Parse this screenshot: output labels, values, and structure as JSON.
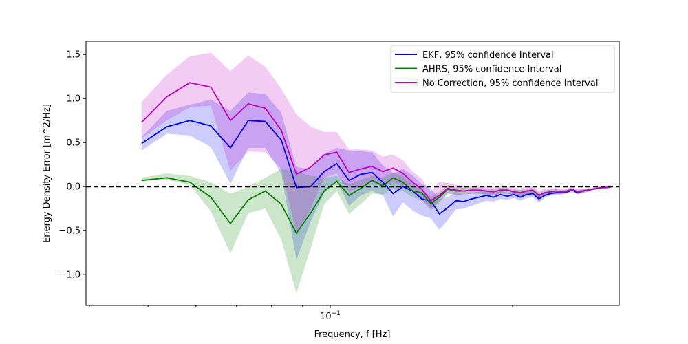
{
  "chart_data": {
    "type": "line",
    "xlabel": "Frequency, f [Hz]",
    "ylabel": "Energy Density Error [m^2/Hz]",
    "xscale": "log",
    "xlim": [
      0.0395,
      0.3
    ],
    "ylim": [
      -1.35,
      1.65
    ],
    "grid": false,
    "legend_position": "top-right",
    "x_tick_labels": [
      {
        "value": 0.1,
        "base": "10",
        "exp": "−1"
      }
    ],
    "y_ticks": [
      -1.0,
      -0.5,
      0.0,
      0.5,
      1.0,
      1.5
    ],
    "y_tick_labels": [
      "−1.0",
      "−0.5",
      "0.0",
      "0.5",
      "1.0",
      "1.5"
    ],
    "reference_line": {
      "y": 0,
      "style": "dashed",
      "color": "#000000"
    },
    "x": [
      0.0488,
      0.0537,
      0.0586,
      0.0635,
      0.0684,
      0.0732,
      0.0781,
      0.083,
      0.0879,
      0.0928,
      0.0977,
      0.1025,
      0.1074,
      0.1123,
      0.1172,
      0.1221,
      0.127,
      0.1318,
      0.1367,
      0.1416,
      0.1465,
      0.1514,
      0.1563,
      0.1611,
      0.166,
      0.171,
      0.176,
      0.181,
      0.186,
      0.191,
      0.196,
      0.201,
      0.206,
      0.211,
      0.216,
      0.221,
      0.226,
      0.231,
      0.236,
      0.241,
      0.246,
      0.251,
      0.256,
      0.261,
      0.266,
      0.271,
      0.276,
      0.281,
      0.286,
      0.291
    ],
    "series": [
      {
        "name": "EKF, 95% confidence Interval",
        "color": "#0000ff",
        "values": [
          0.49,
          0.68,
          0.75,
          0.69,
          0.44,
          0.75,
          0.74,
          0.53,
          -0.01,
          0.0,
          0.17,
          0.26,
          0.07,
          0.14,
          0.16,
          0.05,
          -0.08,
          0.0,
          -0.05,
          -0.14,
          -0.16,
          -0.31,
          -0.24,
          -0.16,
          -0.17,
          -0.14,
          -0.12,
          -0.1,
          -0.12,
          -0.09,
          -0.11,
          -0.09,
          -0.12,
          -0.09,
          -0.08,
          -0.14,
          -0.1,
          -0.08,
          -0.07,
          -0.07,
          -0.06,
          -0.04,
          -0.07,
          -0.05,
          -0.04,
          -0.03,
          -0.02,
          -0.01,
          -0.01,
          0.0
        ],
        "lower": [
          0.41,
          0.6,
          0.58,
          0.45,
          0.03,
          0.44,
          0.44,
          0.15,
          -0.83,
          -0.4,
          -0.07,
          0.07,
          -0.22,
          -0.1,
          -0.05,
          -0.1,
          -0.34,
          -0.18,
          -0.27,
          -0.33,
          -0.36,
          -0.49,
          -0.38,
          -0.26,
          -0.25,
          -0.22,
          -0.19,
          -0.16,
          -0.17,
          -0.14,
          -0.15,
          -0.13,
          -0.16,
          -0.13,
          -0.12,
          -0.18,
          -0.13,
          -0.1,
          -0.09,
          -0.09,
          -0.08,
          -0.06,
          -0.09,
          -0.07,
          -0.05,
          -0.04,
          -0.03,
          -0.02,
          -0.02,
          -0.01
        ],
        "upper": [
          0.56,
          0.86,
          0.93,
          0.99,
          0.86,
          1.07,
          1.05,
          0.84,
          0.22,
          0.2,
          0.37,
          0.44,
          0.41,
          0.4,
          0.39,
          0.24,
          0.15,
          0.2,
          0.13,
          0.03,
          -0.02,
          -0.14,
          -0.12,
          -0.06,
          -0.09,
          -0.07,
          -0.06,
          -0.05,
          -0.07,
          -0.05,
          -0.07,
          -0.06,
          -0.08,
          -0.05,
          -0.04,
          -0.09,
          -0.07,
          -0.05,
          -0.05,
          -0.05,
          -0.04,
          -0.02,
          -0.05,
          -0.03,
          -0.03,
          -0.02,
          -0.01,
          0.0,
          0.0,
          0.01
        ]
      },
      {
        "name": "AHRS, 95% confidence Interval",
        "color": "#008000",
        "values": [
          0.07,
          0.1,
          0.05,
          -0.12,
          -0.42,
          -0.15,
          -0.05,
          -0.2,
          -0.53,
          -0.3,
          -0.05,
          0.06,
          -0.1,
          -0.02,
          0.07,
          0.01,
          0.1,
          0.05,
          -0.05,
          -0.07,
          -0.19,
          -0.12,
          -0.03,
          -0.05,
          -0.05,
          -0.04,
          -0.04,
          -0.05,
          -0.06,
          -0.04,
          -0.04,
          -0.06,
          -0.07,
          -0.05,
          -0.04,
          -0.1,
          -0.07,
          -0.06,
          -0.05,
          -0.06,
          -0.05,
          -0.03,
          -0.06,
          -0.05,
          -0.04,
          -0.03,
          -0.02,
          -0.01,
          -0.01,
          0.0
        ],
        "lower": [
          0.06,
          0.08,
          0.02,
          -0.28,
          -0.76,
          -0.3,
          -0.25,
          -0.6,
          -1.21,
          -0.7,
          -0.2,
          -0.05,
          -0.31,
          -0.2,
          -0.08,
          -0.09,
          -0.03,
          -0.05,
          -0.12,
          -0.15,
          -0.27,
          -0.18,
          -0.08,
          -0.09,
          -0.09,
          -0.08,
          -0.08,
          -0.09,
          -0.1,
          -0.08,
          -0.08,
          -0.1,
          -0.11,
          -0.09,
          -0.07,
          -0.13,
          -0.1,
          -0.09,
          -0.07,
          -0.08,
          -0.07,
          -0.05,
          -0.08,
          -0.07,
          -0.06,
          -0.04,
          -0.03,
          -0.02,
          -0.02,
          -0.01
        ],
        "upper": [
          0.1,
          0.15,
          0.12,
          0.05,
          -0.08,
          0.0,
          0.1,
          0.2,
          0.17,
          0.12,
          0.1,
          0.12,
          0.02,
          0.08,
          0.12,
          0.1,
          0.16,
          0.12,
          0.02,
          -0.02,
          -0.12,
          -0.06,
          0.02,
          -0.01,
          -0.01,
          -0.01,
          -0.01,
          -0.02,
          -0.03,
          -0.01,
          -0.01,
          -0.03,
          -0.04,
          -0.02,
          -0.01,
          -0.07,
          -0.04,
          -0.03,
          -0.03,
          -0.04,
          -0.03,
          -0.01,
          -0.04,
          -0.03,
          -0.02,
          -0.02,
          -0.01,
          0.0,
          0.0,
          0.01
        ]
      },
      {
        "name": "No Correction, 95% confidence Interval",
        "color": "#bf00bf",
        "values": [
          0.73,
          1.02,
          1.18,
          1.13,
          0.75,
          0.94,
          0.89,
          0.64,
          0.14,
          0.22,
          0.36,
          0.39,
          0.16,
          0.2,
          0.23,
          0.17,
          0.21,
          0.15,
          0.05,
          -0.03,
          -0.16,
          -0.1,
          -0.02,
          -0.04,
          -0.05,
          -0.04,
          -0.04,
          -0.05,
          -0.06,
          -0.04,
          -0.04,
          -0.06,
          -0.07,
          -0.05,
          -0.04,
          -0.1,
          -0.07,
          -0.06,
          -0.05,
          -0.06,
          -0.05,
          -0.03,
          -0.06,
          -0.05,
          -0.04,
          -0.03,
          -0.02,
          -0.01,
          -0.01,
          0.0
        ],
        "lower": [
          0.55,
          0.75,
          0.9,
          0.92,
          0.18,
          0.4,
          0.39,
          0.2,
          -0.53,
          -0.25,
          0.1,
          0.15,
          -0.06,
          0.0,
          0.05,
          0.0,
          0.05,
          0.0,
          -0.06,
          -0.15,
          -0.25,
          -0.17,
          -0.08,
          -0.09,
          -0.09,
          -0.08,
          -0.08,
          -0.09,
          -0.1,
          -0.08,
          -0.08,
          -0.1,
          -0.11,
          -0.09,
          -0.07,
          -0.13,
          -0.1,
          -0.09,
          -0.07,
          -0.08,
          -0.07,
          -0.05,
          -0.08,
          -0.07,
          -0.06,
          -0.04,
          -0.03,
          -0.02,
          -0.02,
          -0.01
        ],
        "upper": [
          0.96,
          1.27,
          1.48,
          1.52,
          1.31,
          1.49,
          1.36,
          1.11,
          0.82,
          0.68,
          0.62,
          0.62,
          0.42,
          0.42,
          0.41,
          0.34,
          0.36,
          0.3,
          0.17,
          0.09,
          -0.06,
          0.06,
          0.04,
          0.02,
          0.01,
          0.01,
          0.01,
          0.0,
          -0.01,
          0.01,
          0.01,
          -0.01,
          -0.02,
          0.0,
          0.01,
          -0.05,
          -0.02,
          -0.02,
          -0.02,
          -0.03,
          -0.02,
          0.0,
          -0.03,
          -0.02,
          -0.02,
          -0.01,
          0.0,
          0.01,
          0.01,
          0.02
        ]
      }
    ]
  }
}
